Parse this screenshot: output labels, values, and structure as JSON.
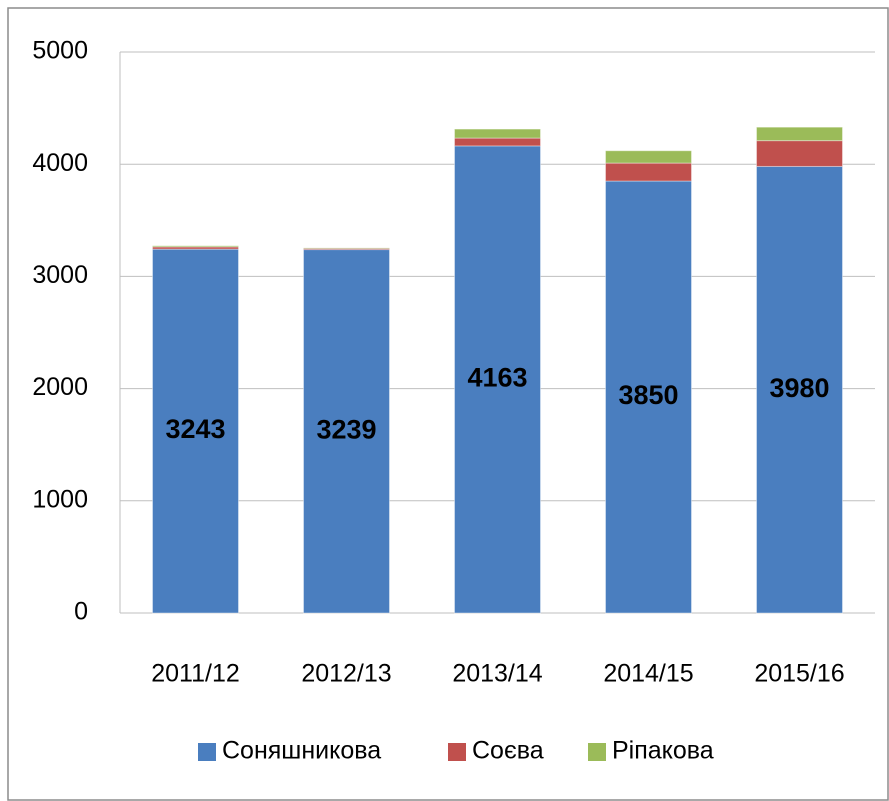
{
  "chart_data": {
    "type": "stacked_bar",
    "categories": [
      "2011/12",
      "2012/13",
      "2013/14",
      "2014/15",
      "2015/16"
    ],
    "series": [
      {
        "name": "Соняшникова",
        "color": "#4a7ebf",
        "values": [
          3243,
          3239,
          4163,
          3850,
          3980
        ]
      },
      {
        "name": "Соєва",
        "color": "#c0504d",
        "values": [
          20,
          10,
          70,
          160,
          230
        ]
      },
      {
        "name": "Ріпакова",
        "color": "#9bbb59",
        "values": [
          10,
          5,
          80,
          110,
          120
        ]
      }
    ],
    "ylim": [
      0,
      5000
    ],
    "yticks": [
      0,
      1000,
      2000,
      3000,
      4000,
      5000
    ],
    "grid": true,
    "legend": "bottom",
    "data_labels_series": 0
  }
}
